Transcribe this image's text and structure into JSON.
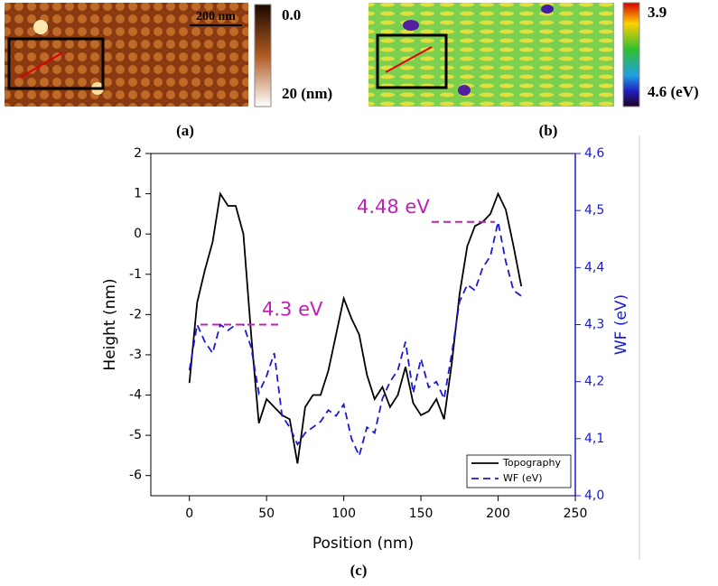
{
  "panel_a": {
    "label": "(a)",
    "scale_bar": "200 nm",
    "colorbar": [
      {
        "value": 0.0,
        "label": "0.0"
      },
      {
        "value": 20,
        "label": "20 (nm)"
      }
    ]
  },
  "panel_b": {
    "label": "(b)",
    "colorbar": [
      {
        "value": 3.9,
        "label": "3.9"
      },
      {
        "value": 4.6,
        "label": "4.6 (eV)"
      }
    ]
  },
  "panel_c": {
    "label": "(c)"
  },
  "chart_data": {
    "type": "line",
    "x_label": "Position (nm)",
    "y_label": "Height (nm)",
    "y2_label": "WF (eV)",
    "x": [
      0,
      5,
      10,
      15,
      20,
      25,
      30,
      35,
      40,
      45,
      50,
      55,
      60,
      65,
      70,
      75,
      80,
      85,
      90,
      95,
      100,
      105,
      110,
      115,
      120,
      125,
      130,
      135,
      140,
      145,
      150,
      155,
      160,
      165,
      170,
      175,
      180,
      185,
      190,
      195,
      200,
      205,
      210,
      215
    ],
    "series": [
      {
        "name": "Topography",
        "color": "#000000",
        "line_style": "solid",
        "values": [
          -3.7,
          -1.7,
          -0.9,
          -0.2,
          1.0,
          0.7,
          0.7,
          0.0,
          -2.5,
          -4.7,
          -4.1,
          -4.3,
          -4.5,
          -4.6,
          -5.7,
          -4.3,
          -4.0,
          -4.0,
          -3.4,
          -2.5,
          -1.6,
          -2.1,
          -2.5,
          -3.5,
          -4.1,
          -3.8,
          -4.3,
          -4.0,
          -3.3,
          -4.2,
          -4.5,
          -4.4,
          -4.1,
          -4.6,
          -3.2,
          -1.5,
          -0.3,
          0.2,
          0.3,
          0.5,
          1.0,
          0.6,
          -0.3,
          -1.3
        ]
      },
      {
        "name": "WF (eV)",
        "color": "#1a1ad4",
        "line_style": "dashed",
        "axis": "y2",
        "values": [
          4.22,
          4.3,
          4.27,
          4.25,
          4.3,
          4.29,
          4.3,
          4.3,
          4.26,
          4.18,
          4.21,
          4.25,
          4.14,
          4.12,
          4.09,
          4.11,
          4.12,
          4.13,
          4.15,
          4.14,
          4.16,
          4.1,
          4.07,
          4.12,
          4.11,
          4.17,
          4.2,
          4.22,
          4.27,
          4.18,
          4.24,
          4.19,
          4.2,
          4.17,
          4.25,
          4.34,
          4.37,
          4.36,
          4.4,
          4.42,
          4.48,
          4.41,
          4.36,
          4.35
        ]
      }
    ],
    "xlim": [
      -25,
      250
    ],
    "xticks": [
      0,
      50,
      100,
      150,
      200,
      250
    ],
    "ylim": [
      -6.5,
      2
    ],
    "yticks": [
      -6,
      -5,
      -4,
      -3,
      -2,
      -1,
      0,
      1,
      2
    ],
    "y2lim": [
      4.0,
      4.6
    ],
    "y2ticks": [
      {
        "value": 4.0,
        "label": "4,0"
      },
      {
        "value": 4.1,
        "label": "4,1"
      },
      {
        "value": 4.2,
        "label": "4,2"
      },
      {
        "value": 4.3,
        "label": "4,3"
      },
      {
        "value": 4.4,
        "label": "4,4"
      },
      {
        "value": 4.5,
        "label": "4,5"
      },
      {
        "value": 4.6,
        "label": "4,6"
      }
    ],
    "annotations": [
      {
        "text": "4.3 eV",
        "value": 4.3,
        "color": "#c020b8"
      },
      {
        "text": "4.48 eV",
        "value": 4.48,
        "color": "#c020b8"
      }
    ],
    "legend": "lower right",
    "grid": false
  }
}
